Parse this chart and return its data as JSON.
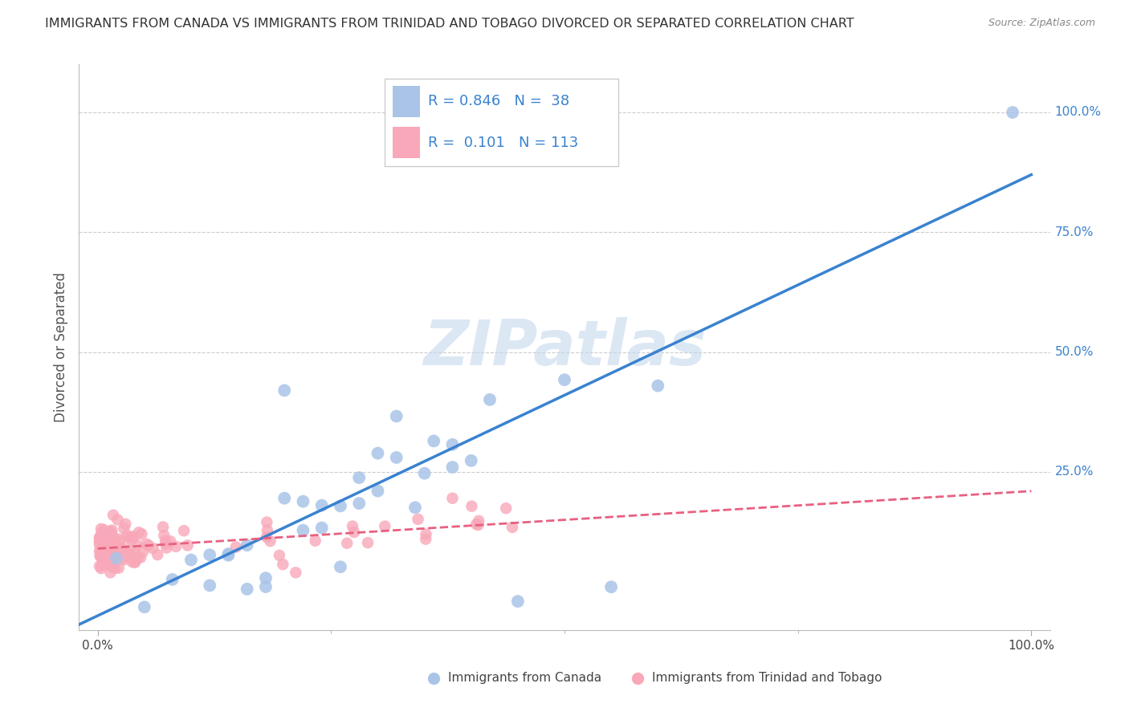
{
  "title": "IMMIGRANTS FROM CANADA VS IMMIGRANTS FROM TRINIDAD AND TOBAGO DIVORCED OR SEPARATED CORRELATION CHART",
  "source": "Source: ZipAtlas.com",
  "ylabel": "Divorced or Separated",
  "legend_blue_r": "0.846",
  "legend_blue_n": "38",
  "legend_pink_r": "0.101",
  "legend_pink_n": "113",
  "legend_label_blue": "Immigrants from Canada",
  "legend_label_pink": "Immigrants from Trinidad and Tobago",
  "watermark": "ZIPatlas",
  "blue_color": "#aac4e8",
  "pink_color": "#f8a8b8",
  "blue_line_color": "#3a82d0",
  "pink_line_color": "#e86080",
  "bg_color": "#ffffff",
  "grid_color": "#cccccc",
  "right_tick_color": "#3a82d0",
  "title_color": "#333333",
  "source_color": "#888888",
  "label_color": "#555555"
}
